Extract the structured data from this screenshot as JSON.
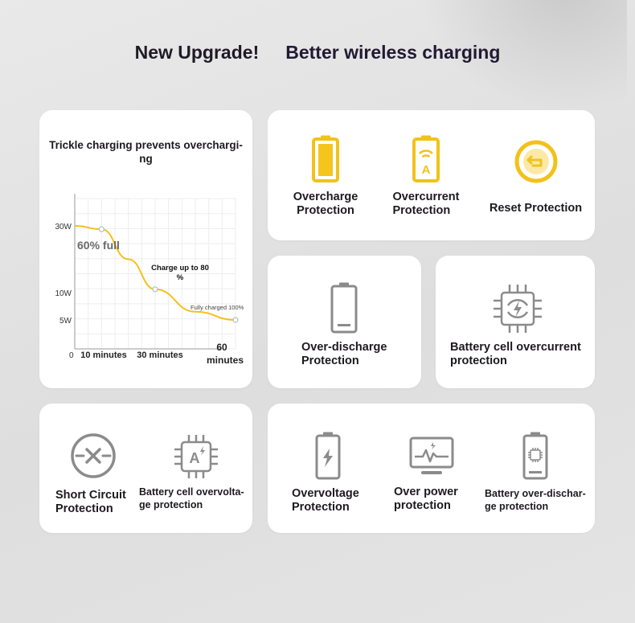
{
  "header": {
    "left_text": "New Upgrade!",
    "right_text": "Better wireless charging"
  },
  "colors": {
    "accent_yellow": "#f2c21b",
    "icon_gray": "#7d7d7d",
    "text_dark": "#1d1a1f"
  },
  "chart_card": {
    "title": "Trickle charging prevents overchargi-\nng",
    "annotations": {
      "sixty_full": "60% full",
      "charge_up": "Charge up to 80\n%",
      "fully_charged": "Fully charged 100%"
    },
    "y_ticks": [
      "30W",
      "10W",
      "5W"
    ],
    "x_ticks": [
      "0",
      "10 minutes",
      "30 minutes",
      "60\nminutes"
    ]
  },
  "chart_data": {
    "type": "line",
    "title": "Trickle charging prevents overchargi-ng",
    "xlabel": "",
    "ylabel": "",
    "x_tick_labels": [
      "0",
      "10 minutes",
      "30 minutes",
      "60 minutes"
    ],
    "y_tick_labels": [
      "30W",
      "10W",
      "5W"
    ],
    "series": [
      {
        "x": [
          0,
          10,
          20,
          30,
          45,
          60
        ],
        "y": [
          30,
          29,
          20,
          11,
          6.5,
          5
        ],
        "markers_at_x": [
          10,
          30,
          60
        ]
      }
    ],
    "annotations": [
      "60% full",
      "Charge up to 80%",
      "Fully charged 100%"
    ],
    "grid": true
  },
  "features": {
    "overcharge": {
      "label": "Overcharge\nProtection",
      "icon": "battery-full-icon"
    },
    "overcurrent": {
      "label": "Overcurrent\nProtection",
      "icon": "battery-current-icon"
    },
    "reset": {
      "label": "Reset Protection",
      "icon": "reset-icon"
    },
    "over_discharge": {
      "label": "Over-discharge\nProtection",
      "icon": "battery-empty-icon"
    },
    "cell_overcurrent": {
      "label": "Battery cell overcurrent\nprotection",
      "icon": "chip-bolt-icon"
    },
    "short_circuit": {
      "label": "Short Circuit\nProtection",
      "icon": "short-circuit-icon"
    },
    "cell_overvoltage": {
      "label": "Battery cell overvolta-\nge protection",
      "icon": "chip-current-icon"
    },
    "overvoltage": {
      "label": "Overvoltage\nProtection",
      "icon": "battery-bolt-icon"
    },
    "over_power": {
      "label": "Over power\nprotection",
      "icon": "monitor-pulse-icon"
    },
    "over_discharge_battery": {
      "label": "Battery over-dischar-\nge protection",
      "icon": "battery-chip-icon"
    }
  }
}
